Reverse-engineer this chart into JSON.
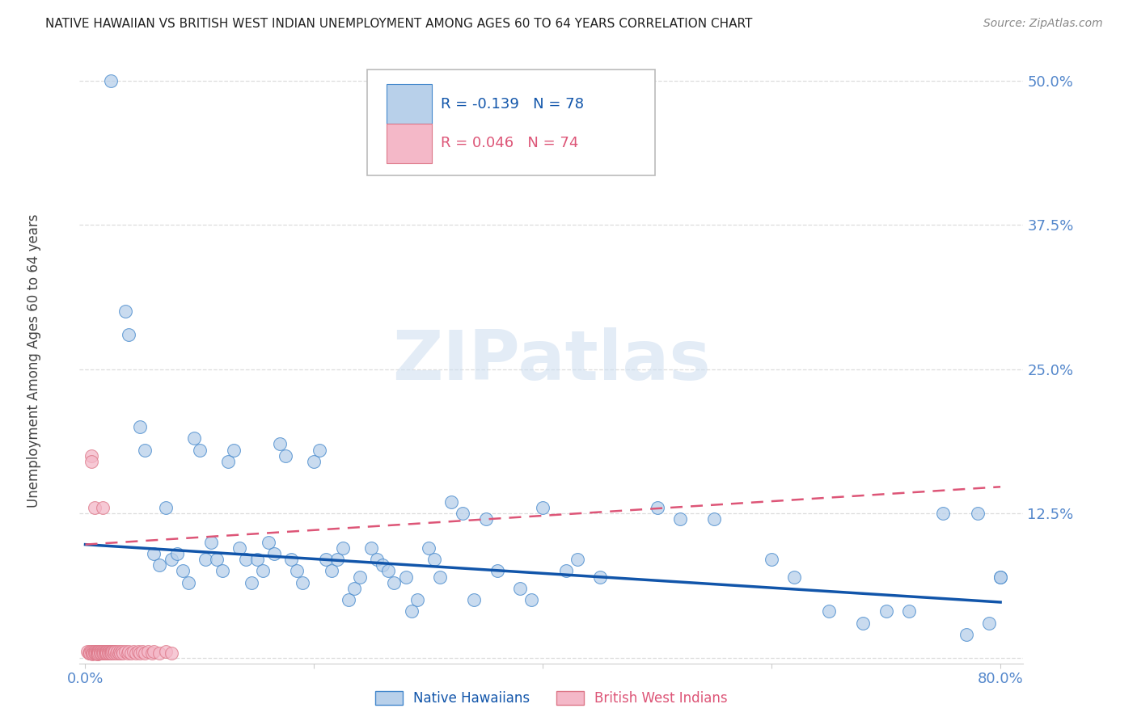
{
  "title": "NATIVE HAWAIIAN VS BRITISH WEST INDIAN UNEMPLOYMENT AMONG AGES 60 TO 64 YEARS CORRELATION CHART",
  "source": "Source: ZipAtlas.com",
  "ylabel": "Unemployment Among Ages 60 to 64 years",
  "watermark": "ZIPatlas",
  "xlim": [
    -0.005,
    0.82
  ],
  "ylim": [
    -0.005,
    0.52
  ],
  "ytick_vals": [
    0.0,
    0.125,
    0.25,
    0.375,
    0.5
  ],
  "ytick_labels": [
    "",
    "12.5%",
    "25.0%",
    "37.5%",
    "50.0%"
  ],
  "xtick_vals": [
    0.0,
    0.2,
    0.4,
    0.6,
    0.8
  ],
  "xtick_labels": [
    "0.0%",
    "",
    "",
    "",
    "80.0%"
  ],
  "legend_blue_R": "R = -0.139",
  "legend_blue_N": "N = 78",
  "legend_pink_R": "R = 0.046",
  "legend_pink_N": "N = 74",
  "blue_scatter_color": "#b8d0ea",
  "blue_edge_color": "#4488cc",
  "blue_line_color": "#1155aa",
  "pink_scatter_color": "#f4b8c8",
  "pink_edge_color": "#dd7788",
  "pink_line_color": "#dd5577",
  "background_color": "#ffffff",
  "grid_color": "#dddddd",
  "title_color": "#222222",
  "ylabel_color": "#444444",
  "tick_label_color": "#5588cc",
  "blue_line_y0": 0.098,
  "blue_line_y1": 0.048,
  "pink_line_y0": 0.098,
  "pink_line_y1": 0.148,
  "blue_x": [
    0.022,
    0.035,
    0.038,
    0.048,
    0.052,
    0.06,
    0.065,
    0.07,
    0.075,
    0.08,
    0.085,
    0.09,
    0.095,
    0.1,
    0.105,
    0.11,
    0.115,
    0.12,
    0.125,
    0.13,
    0.135,
    0.14,
    0.145,
    0.15,
    0.155,
    0.16,
    0.165,
    0.17,
    0.175,
    0.18,
    0.185,
    0.19,
    0.2,
    0.205,
    0.21,
    0.215,
    0.22,
    0.225,
    0.23,
    0.235,
    0.24,
    0.25,
    0.255,
    0.26,
    0.265,
    0.27,
    0.28,
    0.285,
    0.29,
    0.3,
    0.305,
    0.31,
    0.32,
    0.33,
    0.34,
    0.35,
    0.36,
    0.38,
    0.39,
    0.4,
    0.42,
    0.43,
    0.45,
    0.5,
    0.52,
    0.55,
    0.6,
    0.62,
    0.65,
    0.68,
    0.7,
    0.72,
    0.75,
    0.77,
    0.78,
    0.79,
    0.8,
    0.8
  ],
  "blue_y": [
    0.5,
    0.3,
    0.28,
    0.2,
    0.18,
    0.09,
    0.08,
    0.13,
    0.085,
    0.09,
    0.075,
    0.065,
    0.19,
    0.18,
    0.085,
    0.1,
    0.085,
    0.075,
    0.17,
    0.18,
    0.095,
    0.085,
    0.065,
    0.085,
    0.075,
    0.1,
    0.09,
    0.185,
    0.175,
    0.085,
    0.075,
    0.065,
    0.17,
    0.18,
    0.085,
    0.075,
    0.085,
    0.095,
    0.05,
    0.06,
    0.07,
    0.095,
    0.085,
    0.08,
    0.075,
    0.065,
    0.07,
    0.04,
    0.05,
    0.095,
    0.085,
    0.07,
    0.135,
    0.125,
    0.05,
    0.12,
    0.075,
    0.06,
    0.05,
    0.13,
    0.075,
    0.085,
    0.07,
    0.13,
    0.12,
    0.12,
    0.085,
    0.07,
    0.04,
    0.03,
    0.04,
    0.04,
    0.125,
    0.02,
    0.125,
    0.03,
    0.07,
    0.07
  ],
  "pink_x": [
    0.002,
    0.003,
    0.004,
    0.004,
    0.005,
    0.005,
    0.005,
    0.006,
    0.006,
    0.007,
    0.007,
    0.008,
    0.008,
    0.008,
    0.009,
    0.009,
    0.01,
    0.01,
    0.01,
    0.011,
    0.011,
    0.011,
    0.012,
    0.012,
    0.013,
    0.013,
    0.014,
    0.014,
    0.015,
    0.015,
    0.015,
    0.016,
    0.016,
    0.017,
    0.017,
    0.018,
    0.018,
    0.019,
    0.019,
    0.02,
    0.02,
    0.021,
    0.021,
    0.022,
    0.022,
    0.023,
    0.023,
    0.024,
    0.025,
    0.025,
    0.026,
    0.027,
    0.028,
    0.029,
    0.03,
    0.031,
    0.032,
    0.033,
    0.035,
    0.037,
    0.038,
    0.04,
    0.042,
    0.044,
    0.046,
    0.048,
    0.05,
    0.052,
    0.055,
    0.058,
    0.06,
    0.065,
    0.07,
    0.075
  ],
  "pink_y": [
    0.005,
    0.004,
    0.005,
    0.004,
    0.175,
    0.17,
    0.005,
    0.004,
    0.003,
    0.005,
    0.004,
    0.13,
    0.005,
    0.004,
    0.005,
    0.004,
    0.005,
    0.004,
    0.003,
    0.005,
    0.004,
    0.003,
    0.005,
    0.004,
    0.005,
    0.004,
    0.005,
    0.004,
    0.13,
    0.005,
    0.004,
    0.005,
    0.004,
    0.005,
    0.004,
    0.005,
    0.004,
    0.005,
    0.004,
    0.005,
    0.004,
    0.005,
    0.004,
    0.005,
    0.004,
    0.005,
    0.004,
    0.005,
    0.005,
    0.004,
    0.005,
    0.004,
    0.005,
    0.004,
    0.005,
    0.004,
    0.005,
    0.004,
    0.005,
    0.004,
    0.005,
    0.004,
    0.005,
    0.004,
    0.005,
    0.004,
    0.005,
    0.004,
    0.005,
    0.004,
    0.005,
    0.004,
    0.005,
    0.004
  ]
}
